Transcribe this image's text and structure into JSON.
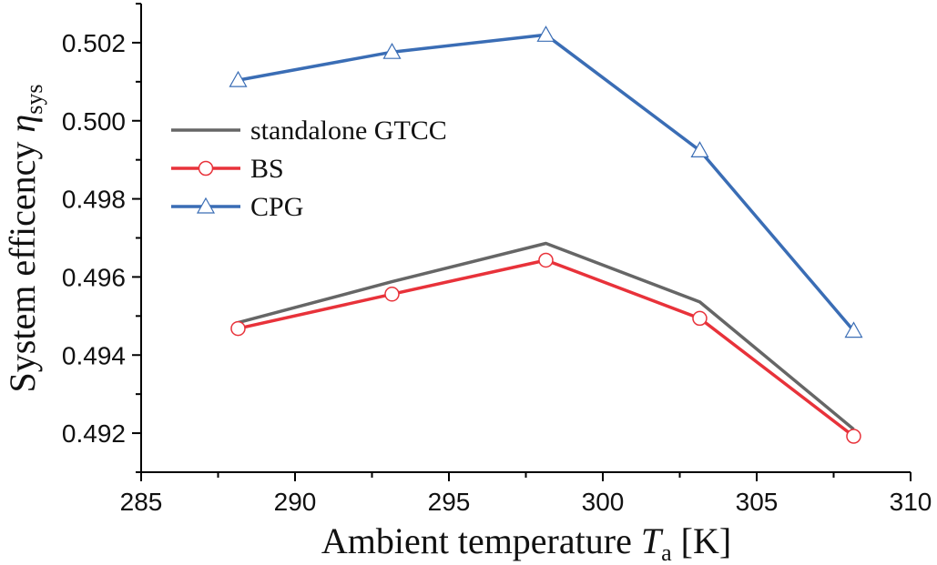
{
  "chart_data": {
    "type": "line",
    "xlabel": "Ambient temperature",
    "xlabel_symbol": "T",
    "xlabel_subscript": "a",
    "xlabel_unit": "[K]",
    "ylabel": "System efficency",
    "ylabel_symbol": "η",
    "ylabel_subscript": "sys",
    "xlim": [
      285,
      310
    ],
    "ylim": [
      0.491,
      0.503
    ],
    "xticks": [
      "285",
      "290",
      "295",
      "300",
      "305",
      "310"
    ],
    "yticks": [
      "0.492",
      "0.494",
      "0.496",
      "0.498",
      "0.500",
      "0.502"
    ],
    "x": [
      288.15,
      293.15,
      298.15,
      303.15,
      308.15
    ],
    "series": [
      {
        "name": "standalone GTCC",
        "color": "#666666",
        "marker": "none",
        "values": [
          0.49483,
          0.49588,
          0.49686,
          0.49536,
          0.4921
        ]
      },
      {
        "name": "BS",
        "color": "#e8323a",
        "marker": "circle",
        "values": [
          0.49468,
          0.49556,
          0.49643,
          0.49494,
          0.49192
        ]
      },
      {
        "name": "CPG",
        "color": "#3a6db5",
        "marker": "triangle",
        "values": [
          0.50104,
          0.50176,
          0.5022,
          0.49924,
          0.49462
        ]
      }
    ],
    "legend_position": "upper-left"
  }
}
